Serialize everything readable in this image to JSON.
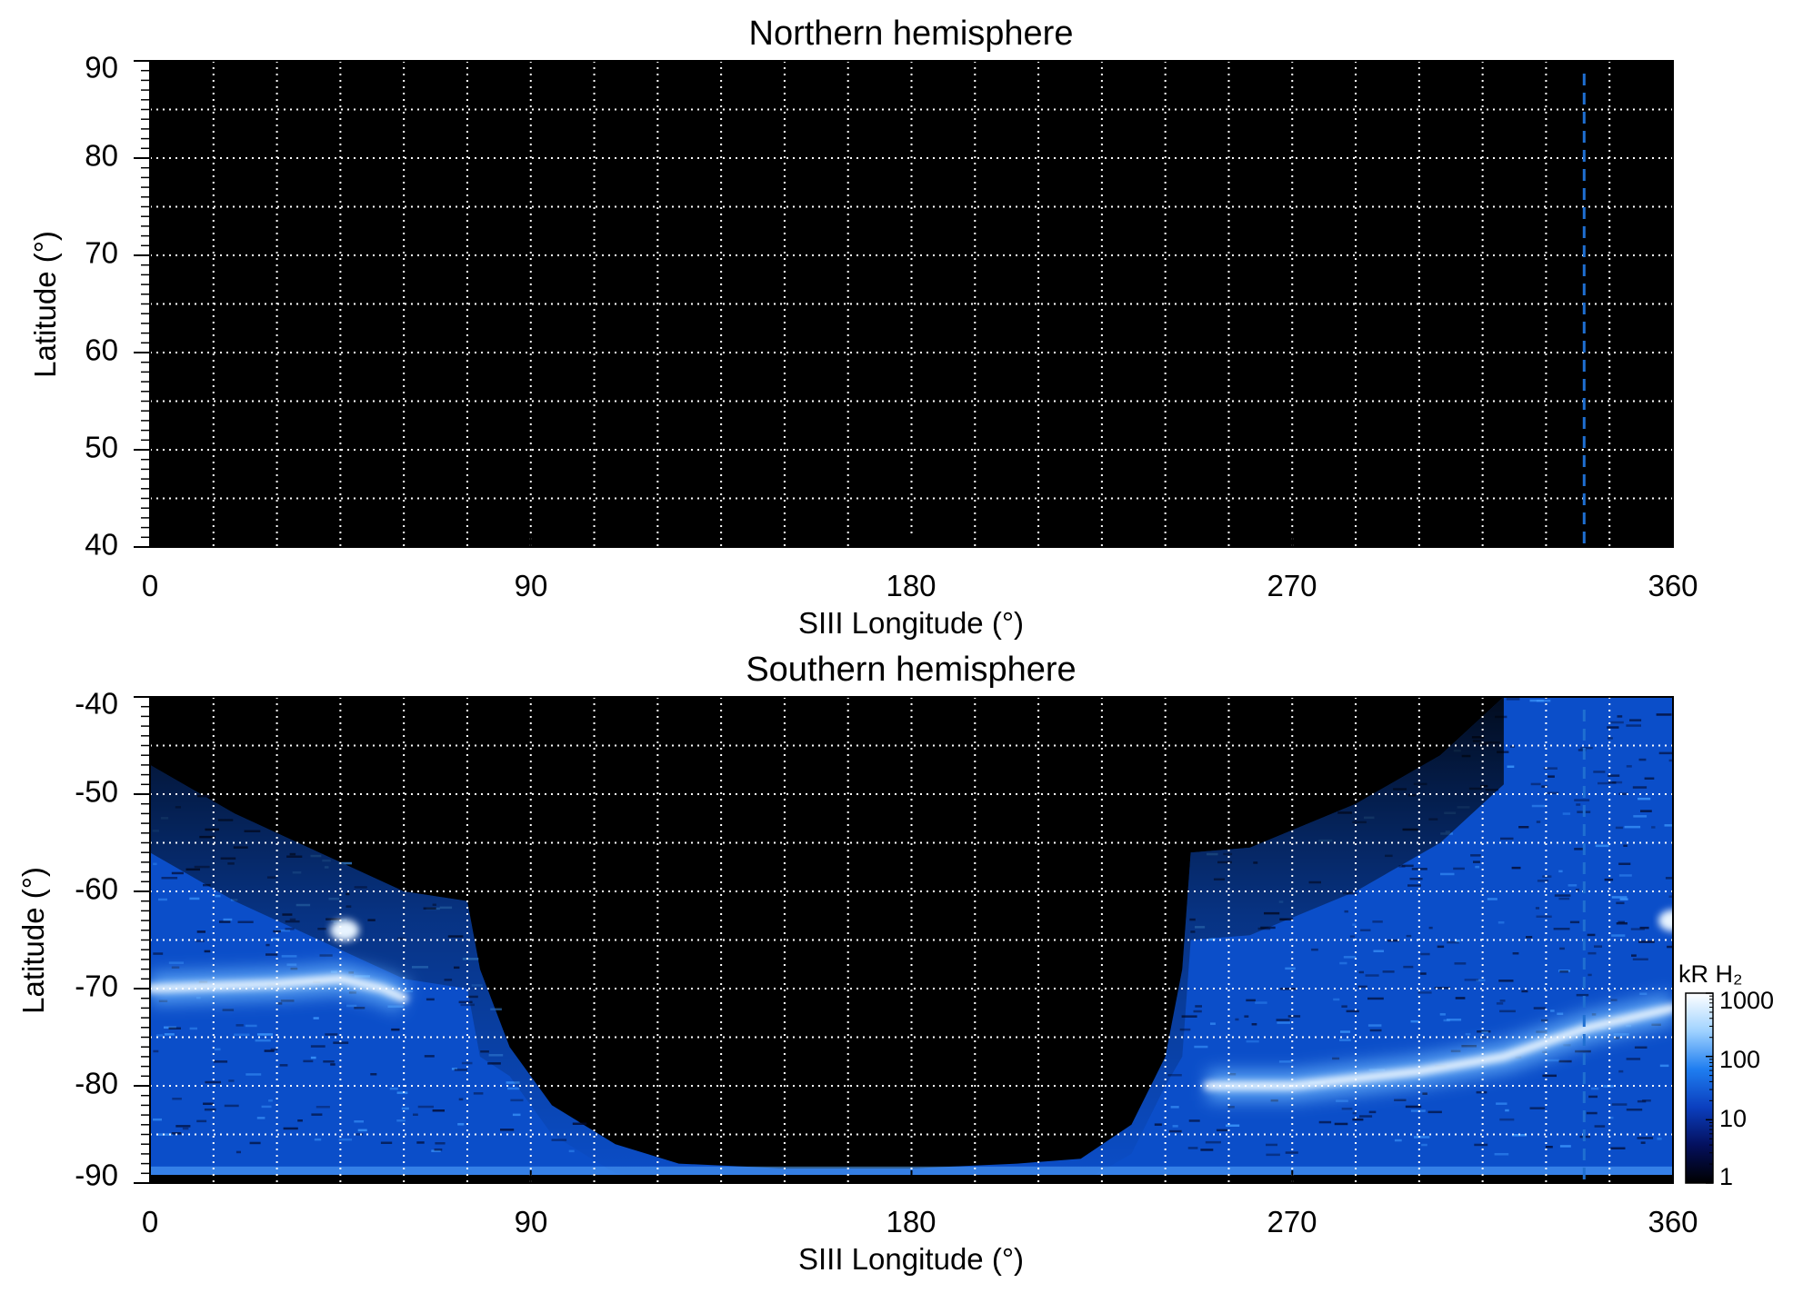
{
  "chart_data": [
    {
      "type": "heatmap",
      "title": "Northern hemisphere",
      "xlabel": "SIII Longitude (°)",
      "ylabel": "Latitude (°)",
      "xlim": [
        0,
        360
      ],
      "ylim": [
        40,
        90
      ],
      "x_ticks": [
        0,
        90,
        180,
        270,
        360
      ],
      "x_tick_labels": [
        "0",
        "90",
        "180",
        "270",
        "360"
      ],
      "y_ticks": [
        40,
        50,
        60,
        70,
        80,
        90
      ],
      "y_tick_labels": [
        "40",
        "50",
        "60",
        "70",
        "80",
        "90"
      ],
      "x_grid_step": 15,
      "y_grid_step": 5,
      "grid": true,
      "background": "#000000",
      "reference_line": {
        "longitude": 339,
        "style": "dashed",
        "color": "#1f6fd1"
      },
      "emission": "none"
    },
    {
      "type": "heatmap",
      "title": "Southern hemisphere",
      "xlabel": "SIII Longitude (°)",
      "ylabel": "Latitude (°)",
      "xlim": [
        0,
        360
      ],
      "ylim": [
        -90,
        -40
      ],
      "x_ticks": [
        0,
        90,
        180,
        270,
        360
      ],
      "x_tick_labels": [
        "0",
        "90",
        "180",
        "270",
        "360"
      ],
      "y_ticks": [
        -90,
        -80,
        -70,
        -60,
        -50,
        -40
      ],
      "y_tick_labels": [
        "-90",
        "-80",
        "-70",
        "-60",
        "-50",
        "-40"
      ],
      "x_grid_step": 15,
      "y_grid_step": 5,
      "grid": true,
      "background": "#000000",
      "reference_line": {
        "longitude": 339,
        "style": "dashed",
        "color": "#1f6fd1"
      },
      "coverage_boundary": [
        [
          0,
          -47
        ],
        [
          20,
          -52
        ],
        [
          40,
          -56
        ],
        [
          60,
          -60
        ],
        [
          75,
          -61
        ],
        [
          78,
          -68
        ],
        [
          85,
          -76
        ],
        [
          95,
          -82
        ],
        [
          110,
          -86
        ],
        [
          125,
          -88
        ],
        [
          150,
          -88.5
        ],
        [
          180,
          -88.5
        ],
        [
          205,
          -88
        ],
        [
          220,
          -87.5
        ],
        [
          232,
          -84
        ],
        [
          240,
          -77
        ],
        [
          244,
          -68
        ],
        [
          246,
          -56
        ],
        [
          260,
          -55.5
        ],
        [
          285,
          -51
        ],
        [
          305,
          -46
        ],
        [
          320,
          -40
        ]
      ],
      "auroral_oval": [
        [
          0,
          -70
        ],
        [
          30,
          -69.5
        ],
        [
          45,
          -69
        ],
        [
          55,
          -70
        ],
        [
          60,
          -71
        ],
        [
          250,
          -80
        ],
        [
          270,
          -80
        ],
        [
          300,
          -78.5
        ],
        [
          320,
          -77
        ],
        [
          340,
          -74
        ],
        [
          360,
          -72
        ]
      ],
      "bright_spots": [
        {
          "lon": 46,
          "lat": -64
        },
        {
          "lon": 360,
          "lat": -63
        }
      ],
      "colorbar": {
        "label": "kR H₂",
        "scale": "log",
        "range": [
          1,
          1000
        ],
        "ticks": [
          1,
          10,
          100,
          1000
        ],
        "tick_labels": [
          "1",
          "10",
          "100",
          "1000"
        ],
        "colors": [
          "#000000",
          "#04105e",
          "#0b3fbf",
          "#1f7ef0",
          "#9fd2ff",
          "#ffffff"
        ]
      }
    }
  ]
}
